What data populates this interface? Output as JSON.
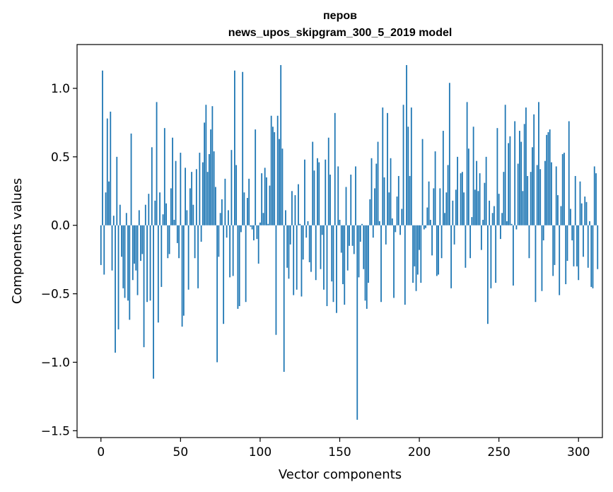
{
  "chart_data": {
    "type": "bar",
    "title_line1": "перов",
    "title_line2": "news_upos_skipgram_300_5_2019 model",
    "xlabel": "Vector components",
    "ylabel": "Components values",
    "xlim": [
      -15,
      315
    ],
    "ylim": [
      -1.55,
      1.32
    ],
    "xticks": [
      0,
      50,
      100,
      150,
      200,
      250,
      300
    ],
    "xtick_labels": [
      "0",
      "50",
      "100",
      "150",
      "200",
      "250",
      "300"
    ],
    "yticks": [
      -1.5,
      -1.0,
      -0.5,
      0.0,
      0.5,
      1.0
    ],
    "ytick_labels": [
      "−1.5",
      "−1.0",
      "−0.5",
      "0.0",
      "0.5",
      "1.0"
    ],
    "bar_color": "#1f77b4",
    "x_start": 0,
    "values": [
      -0.29,
      1.13,
      -0.36,
      0.24,
      0.78,
      0.32,
      0.83,
      -0.33,
      0.07,
      -0.93,
      0.5,
      -0.76,
      0.15,
      -0.23,
      -0.46,
      -0.53,
      0.09,
      -0.55,
      -0.69,
      0.67,
      -0.4,
      -0.28,
      -0.33,
      -0.51,
      0.11,
      -0.26,
      -0.21,
      -0.89,
      0.15,
      -0.56,
      0.23,
      -0.55,
      0.57,
      -1.12,
      0.18,
      0.9,
      -0.71,
      0.24,
      -0.45,
      0.08,
      0.71,
      0.16,
      -0.24,
      -0.21,
      0.27,
      0.64,
      0.04,
      0.47,
      -0.13,
      -0.24,
      0.53,
      -0.74,
      -0.66,
      0.42,
      0.11,
      -0.47,
      0.27,
      0.39,
      0.15,
      -0.24,
      0.41,
      -0.46,
      0.53,
      -0.12,
      0.46,
      0.75,
      0.88,
      0.39,
      0.52,
      0.7,
      0.87,
      0.54,
      0.28,
      -1.0,
      -0.23,
      0.09,
      0.19,
      -0.72,
      0.34,
      -0.09,
      0.11,
      -0.38,
      0.55,
      -0.37,
      1.13,
      0.44,
      -0.61,
      -0.59,
      -0.05,
      1.12,
      0.24,
      -0.56,
      0.2,
      0.34,
      -0.01,
      -0.03,
      -0.11,
      0.7,
      -0.1,
      -0.28,
      0.02,
      0.38,
      0.09,
      0.42,
      0.35,
      0.01,
      0.29,
      0.8,
      0.72,
      0.68,
      -0.8,
      0.8,
      0.63,
      1.17,
      0.56,
      -1.07,
      0.11,
      -0.31,
      -0.39,
      -0.14,
      0.25,
      -0.51,
      0.22,
      -0.47,
      0.3,
      0.01,
      -0.52,
      -0.25,
      0.48,
      -0.09,
      0.03,
      -0.27,
      -0.34,
      0.61,
      0.4,
      -0.4,
      0.49,
      0.46,
      -0.32,
      -0.07,
      -0.47,
      0.48,
      -0.59,
      0.64,
      0.37,
      -0.41,
      -0.56,
      0.82,
      -0.64,
      0.43,
      0.04,
      -0.2,
      -0.43,
      -0.58,
      0.28,
      -0.33,
      -0.15,
      0.37,
      -0.15,
      -0.21,
      0.43,
      -1.42,
      -0.38,
      -0.12,
      0.01,
      -0.32,
      -0.55,
      -0.61,
      -0.42,
      0.19,
      0.49,
      -0.09,
      0.27,
      0.45,
      0.61,
      0.03,
      -0.56,
      0.86,
      0.35,
      -0.14,
      0.82,
      0.24,
      0.49,
      0.05,
      -0.53,
      -0.05,
      0.21,
      0.36,
      -0.07,
      0.12,
      0.88,
      -0.58,
      1.17,
      0.72,
      0.36,
      0.86,
      -0.42,
      -0.3,
      -0.48,
      -0.36,
      -0.18,
      -0.42,
      0.63,
      -0.03,
      -0.02,
      0.13,
      0.32,
      0.04,
      -0.22,
      0.27,
      0.54,
      -0.37,
      -0.36,
      0.27,
      -0.24,
      0.69,
      0.09,
      0.24,
      0.44,
      1.04,
      -0.46,
      0.18,
      -0.14,
      0.26,
      0.5,
      0.0,
      0.38,
      0.39,
      0.24,
      -0.31,
      0.9,
      0.56,
      -0.24,
      0.06,
      0.72,
      0.26,
      0.47,
      0.25,
      0.38,
      -0.18,
      0.04,
      0.31,
      0.5,
      -0.72,
      0.18,
      -0.46,
      0.09,
      0.14,
      -0.42,
      0.71,
      0.23,
      -0.1,
      0.09,
      0.39,
      0.88,
      0.03,
      0.6,
      0.65,
      0.01,
      -0.44,
      0.76,
      -0.03,
      0.45,
      0.69,
      0.61,
      0.25,
      0.74,
      0.86,
      0.36,
      -0.24,
      0.39,
      0.57,
      0.81,
      -0.56,
      0.44,
      0.9,
      0.41,
      -0.48,
      -0.11,
      0.47,
      0.66,
      0.68,
      0.7,
      0.46,
      -0.37,
      -0.29,
      0.43,
      0.22,
      -0.51,
      0.14,
      0.52,
      0.53,
      -0.43,
      -0.26,
      0.76,
      0.12,
      -0.11,
      -0.3,
      0.36,
      -0.3,
      -0.4,
      0.32,
      0.16,
      -0.23,
      0.21,
      0.17,
      -0.31,
      0.03,
      -0.45,
      -0.46,
      0.43,
      0.38,
      -0.32
    ]
  }
}
